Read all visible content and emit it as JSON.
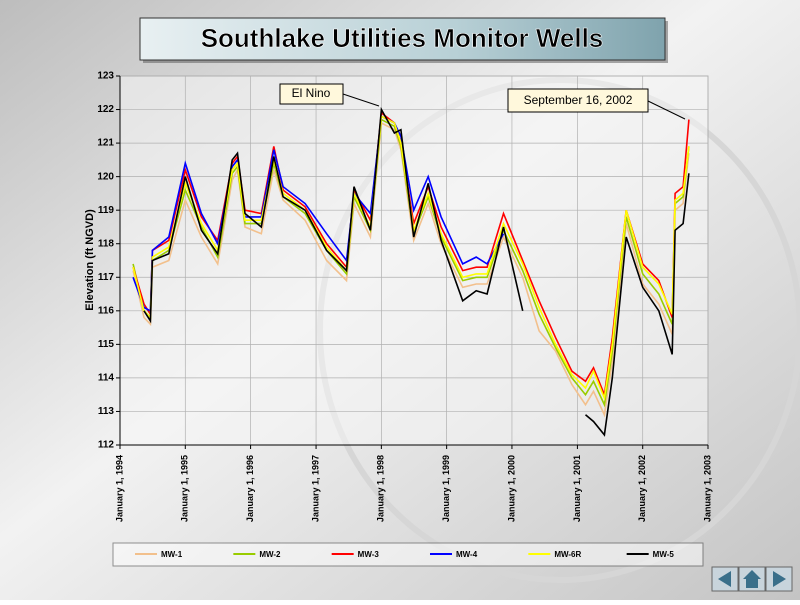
{
  "chart_data": {
    "type": "line",
    "title": "Southlake Utilities Monitor Wells",
    "y_label": "Elevation (ft NGVD)",
    "annotations": [
      "El Nino",
      "September 16, 2002"
    ],
    "grid": true,
    "legend": "bottom",
    "ylim": [
      112,
      123
    ],
    "yticks": [
      112,
      113,
      114,
      115,
      116,
      117,
      118,
      119,
      120,
      121,
      122,
      123
    ],
    "xlim": [
      "1994-01-01",
      "2003-01-01"
    ],
    "xticks": [
      {
        "value": "1994-01-01",
        "label": "January 1, 1994"
      },
      {
        "value": "1995-01-01",
        "label": "January 1, 1995"
      },
      {
        "value": "1996-01-01",
        "label": "January 1, 1996"
      },
      {
        "value": "1997-01-01",
        "label": "January 1, 1997"
      },
      {
        "value": "1998-01-01",
        "label": "January 1, 1998"
      },
      {
        "value": "1999-01-01",
        "label": "January 1, 1999"
      },
      {
        "value": "2000-01-01",
        "label": "January 1, 2000"
      },
      {
        "value": "2001-01-01",
        "label": "January 1, 2001"
      },
      {
        "value": "2002-01-01",
        "label": "January 1, 2002"
      },
      {
        "value": "2003-01-01",
        "label": "January 1, 2003"
      }
    ],
    "x": [
      "1994-03-15",
      "1994-05-15",
      "1994-06-20",
      "1994-07-01",
      "1994-10-01",
      "1995-01-01",
      "1995-04-01",
      "1995-07-01",
      "1995-09-20",
      "1995-10-20",
      "1995-12-01",
      "1996-03-01",
      "1996-05-10",
      "1996-07-01",
      "1996-11-01",
      "1997-03-01",
      "1997-06-20",
      "1997-08-01",
      "1997-11-01",
      "1998-01-01",
      "1998-03-15",
      "1998-04-20",
      "1998-07-01",
      "1998-09-20",
      "1998-12-01",
      "1999-04-01",
      "1999-06-15",
      "1999-08-15",
      "1999-11-15",
      "2000-03-01",
      "2000-06-01",
      "2000-09-01",
      "2000-12-01",
      "2001-02-15",
      "2001-04-01",
      "2001-06-01",
      "2001-07-15",
      "2001-10-01",
      "2002-01-01",
      "2002-04-01",
      "2002-06-15",
      "2002-07-01",
      "2002-08-15",
      "2002-09-16"
    ],
    "series": [
      {
        "name": "MW-1",
        "color": "#f2c08c",
        "values": [
          117.2,
          115.8,
          115.6,
          117.3,
          117.5,
          119.3,
          118.2,
          117.4,
          119.9,
          120.2,
          118.5,
          118.3,
          120.2,
          119.3,
          118.7,
          117.5,
          116.9,
          119.2,
          118.2,
          121.6,
          121.4,
          120.8,
          118.1,
          119.2,
          118.0,
          116.7,
          116.8,
          116.8,
          118.2,
          117.0,
          115.4,
          114.8,
          113.8,
          113.2,
          113.6,
          112.9,
          114.5,
          118.6,
          116.8,
          116.2,
          115.3,
          119.0,
          119.2,
          120.7
        ]
      },
      {
        "name": "MW-2",
        "color": "#99cc00",
        "values": [
          117.4,
          116.0,
          115.8,
          117.5,
          117.8,
          119.6,
          118.5,
          117.6,
          120.1,
          120.3,
          118.6,
          118.6,
          120.4,
          119.4,
          118.9,
          117.8,
          117.1,
          119.4,
          118.4,
          121.7,
          121.5,
          120.9,
          118.3,
          119.4,
          118.2,
          116.9,
          117.0,
          117.0,
          118.4,
          117.2,
          115.9,
          114.9,
          114.0,
          113.5,
          113.9,
          113.2,
          114.8,
          118.8,
          117.1,
          116.5,
          115.6,
          119.2,
          119.4,
          120.9
        ]
      },
      {
        "name": "MW-3",
        "color": "#ff0000",
        "values": [
          117.3,
          116.2,
          115.9,
          117.8,
          118.1,
          120.2,
          118.8,
          118.1,
          120.4,
          120.6,
          119.0,
          118.9,
          120.9,
          119.6,
          119.1,
          118.0,
          117.3,
          119.6,
          118.7,
          121.9,
          121.6,
          121.0,
          118.6,
          119.7,
          118.5,
          117.2,
          117.3,
          117.3,
          118.9,
          117.5,
          116.3,
          115.2,
          114.2,
          113.9,
          114.3,
          113.5,
          115.2,
          119.0,
          117.4,
          116.9,
          115.8,
          119.5,
          119.7,
          121.7
        ]
      },
      {
        "name": "MW-4",
        "color": "#0000ff",
        "values": [
          117.0,
          116.1,
          116.0,
          117.8,
          118.2,
          120.4,
          118.9,
          118.0,
          120.3,
          120.5,
          118.8,
          118.8,
          120.8,
          119.7,
          119.2,
          118.3,
          117.5,
          119.5,
          118.9,
          121.8,
          121.6,
          121.2,
          119.0,
          120.0,
          118.8,
          117.4,
          117.6,
          117.4,
          118.3,
          null,
          null,
          null,
          null,
          null,
          null,
          null,
          null,
          null,
          null,
          null,
          null,
          null,
          null,
          null
        ]
      },
      {
        "name": "MW-6R",
        "color": "#ffff00",
        "values": [
          117.3,
          116.0,
          115.8,
          117.6,
          117.9,
          119.8,
          118.6,
          117.8,
          120.2,
          120.4,
          118.7,
          118.7,
          120.5,
          119.5,
          119.0,
          117.9,
          117.2,
          119.5,
          118.5,
          121.8,
          121.6,
          121.0,
          118.4,
          119.5,
          118.3,
          117.0,
          117.1,
          117.1,
          118.6,
          117.4,
          116.1,
          115.0,
          114.1,
          113.7,
          114.2,
          113.4,
          115.0,
          119.0,
          117.3,
          116.8,
          115.9,
          119.3,
          119.5,
          120.9
        ]
      },
      {
        "name": "MW-5",
        "color": "#000000",
        "values": [
          null,
          116.0,
          115.7,
          117.5,
          117.7,
          120.0,
          118.4,
          117.7,
          120.5,
          120.7,
          118.9,
          118.5,
          120.6,
          119.4,
          119.0,
          117.8,
          117.2,
          119.7,
          118.4,
          122.0,
          121.3,
          121.4,
          118.2,
          119.8,
          118.1,
          116.3,
          116.6,
          116.5,
          118.5,
          116.0,
          null,
          null,
          null,
          112.9,
          112.7,
          112.3,
          114.0,
          118.2,
          116.7,
          116.0,
          114.7,
          118.4,
          118.6,
          120.1
        ]
      }
    ]
  }
}
